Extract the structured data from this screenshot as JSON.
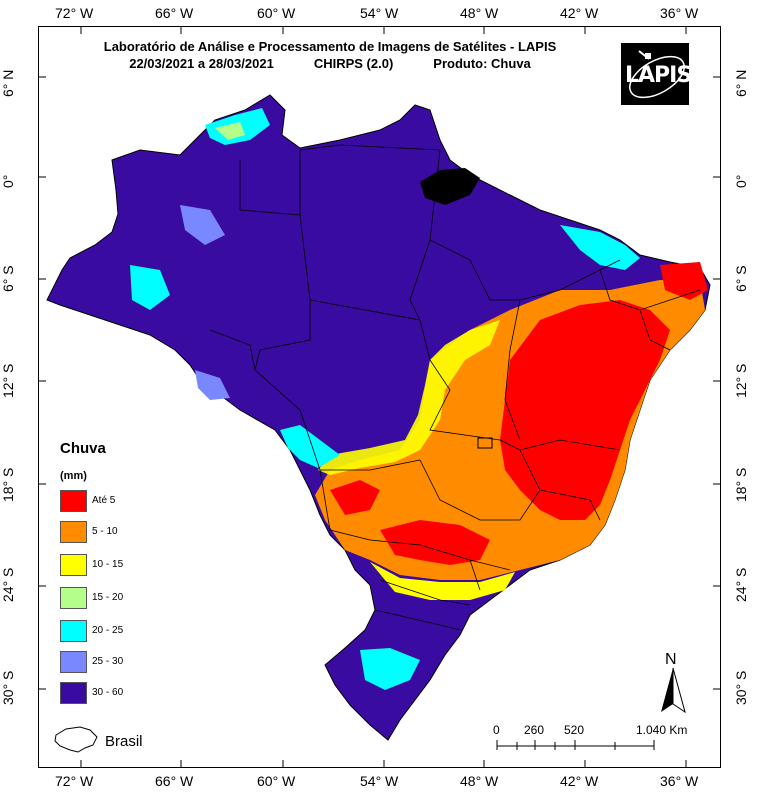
{
  "title": {
    "line1": "Laboratório de Análise e Processamento de Imagens de Satélites - LAPIS",
    "dates": "22/03/2021  a 28/03/2021",
    "source": "CHIRPS (2.0)",
    "product": "Produto: Chuva"
  },
  "logo": {
    "text": "LAPIS"
  },
  "longitude_ticks": [
    "72° W",
    "66° W",
    "60° W",
    "54° W",
    "48° W",
    "42° W",
    "36° W"
  ],
  "latitude_ticks": [
    "6° N",
    "0°",
    "6° S",
    "12° S",
    "18° S",
    "24° S",
    "30° S"
  ],
  "legend": {
    "title": "Chuva",
    "unit": "(mm)",
    "items": [
      {
        "label": "Até 5",
        "color": "#ff0000"
      },
      {
        "label": "5 - 10",
        "color": "#ff8c00"
      },
      {
        "label": "10 - 15",
        "color": "#ffff00"
      },
      {
        "label": "15 - 20",
        "color": "#b4ff8c"
      },
      {
        "label": "20 - 25",
        "color": "#00ffff"
      },
      {
        "label": "25 - 30",
        "color": "#7a88ff"
      },
      {
        "label": "30 - 60",
        "color": "#3a0ba0"
      }
    ]
  },
  "inset_label": "Brasil",
  "north_arrow": "N",
  "scale_bar": {
    "labels": [
      "0",
      "260",
      "520",
      "1.040 Km"
    ]
  }
}
